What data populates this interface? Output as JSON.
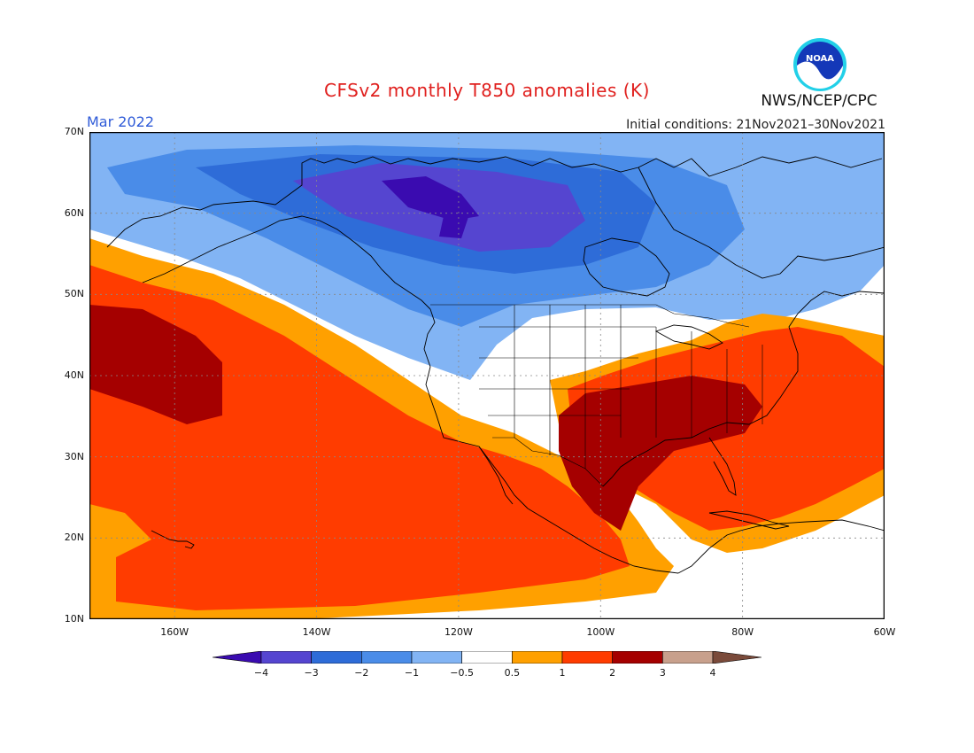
{
  "header": {
    "title": "CFSv2 monthly T850 anomalies (K)",
    "valid_month": "Mar 2022",
    "initial_conditions": "Initial conditions: 21Nov2021–30Nov2021",
    "agency": "NWS/NCEP/CPC",
    "logo_text": "NOAA"
  },
  "map": {
    "lon_range": [
      -172,
      -60
    ],
    "lat_range": [
      10,
      70
    ],
    "lat_labels": [
      "70N",
      "60N",
      "50N",
      "40N",
      "30N",
      "20N",
      "10N"
    ],
    "lon_labels": [
      "160W",
      "140W",
      "120W",
      "100W",
      "80W",
      "60W"
    ],
    "grid": "dotted"
  },
  "legend": {
    "bin_labels": [
      "−4",
      "−3",
      "−2",
      "−1",
      "−0.5",
      "0.5",
      "1",
      "2",
      "3",
      "4"
    ],
    "colors": [
      "#3a0bb0",
      "#5545d0",
      "#2e6cd8",
      "#4a8ce8",
      "#82b4f4",
      "#ffffff",
      "#ffa000",
      "#ff3c00",
      "#a50000",
      "#c8a08c",
      "#7a4a3a"
    ]
  }
}
